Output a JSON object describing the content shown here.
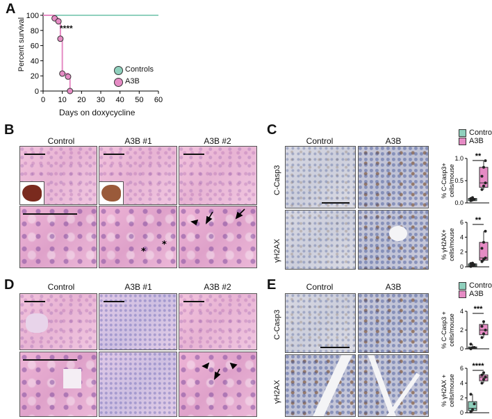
{
  "panels": {
    "A": "A",
    "B": "B",
    "C": "C",
    "D": "D",
    "E": "E"
  },
  "survival": {
    "ylabel": "Percent survival",
    "xlabel": "Days on doxycycline",
    "significance": "****",
    "legend": [
      {
        "name": "Controls",
        "color": "#8fd0bd"
      },
      {
        "name": "A3B",
        "color": "#e58bc4"
      }
    ]
  },
  "chart_data": [
    {
      "type": "line",
      "title": "",
      "xlabel": "Days on doxycycline",
      "ylabel": "Percent survival",
      "xlim": [
        0,
        60
      ],
      "ylim": [
        0,
        100
      ],
      "xticks": [
        "0",
        "10",
        "20",
        "30",
        "40",
        "50",
        "60"
      ],
      "yticks": [
        "0",
        "20",
        "40",
        "60",
        "80",
        "100"
      ],
      "series": [
        {
          "name": "Controls",
          "color": "#8fd0bd",
          "x": [
            0,
            60
          ],
          "y": [
            100,
            100
          ]
        },
        {
          "name": "A3B",
          "color": "#e58bc4",
          "x": [
            0,
            6,
            8,
            9,
            10,
            13,
            14,
            14
          ],
          "y": [
            100,
            96,
            92,
            69,
            23,
            19,
            0,
            0
          ],
          "points": [
            [
              6,
              96
            ],
            [
              8,
              92
            ],
            [
              9,
              69
            ],
            [
              10,
              23
            ],
            [
              13,
              19
            ],
            [
              14,
              0
            ]
          ]
        }
      ]
    },
    {
      "type": "box",
      "panel": "C",
      "ylabel": "% C-Casp3+ cells/mouse",
      "ylim": [
        0,
        1.0
      ],
      "yticks": [
        "0.0",
        "0.5",
        "1.0"
      ],
      "significance": "**",
      "groups": [
        {
          "name": "Control",
          "color": "#8fd0bd",
          "q1": 0.05,
          "median": 0.08,
          "q3": 0.1,
          "min": 0.03,
          "max": 0.12,
          "points": [
            0.05,
            0.07,
            0.08,
            0.1,
            0.12
          ]
        },
        {
          "name": "A3B",
          "color": "#e58bc4",
          "q1": 0.35,
          "median": 0.45,
          "q3": 0.8,
          "min": 0.3,
          "max": 0.95,
          "points": [
            0.3,
            0.38,
            0.45,
            0.6,
            0.8,
            0.95
          ]
        }
      ]
    },
    {
      "type": "box",
      "panel": "C",
      "ylabel": "% γH2AX+ cells/mouse",
      "ylim": [
        0,
        6
      ],
      "yticks": [
        "0",
        "2",
        "4",
        "6"
      ],
      "significance": "**",
      "groups": [
        {
          "name": "Control",
          "color": "#8fd0bd",
          "q1": 0.1,
          "median": 0.25,
          "q3": 0.4,
          "min": 0.05,
          "max": 0.5,
          "points": [
            0.05,
            0.2,
            0.3,
            0.45,
            0.5
          ]
        },
        {
          "name": "A3B",
          "color": "#e58bc4",
          "q1": 0.9,
          "median": 1.2,
          "q3": 3.3,
          "min": 0.7,
          "max": 4.8,
          "points": [
            0.7,
            1.0,
            1.2,
            2.5,
            3.3,
            4.8
          ]
        }
      ]
    },
    {
      "type": "box",
      "panel": "E",
      "ylabel": "% C-Casp3 + cells/mouse",
      "ylim": [
        0,
        4
      ],
      "yticks": [
        "0",
        "2",
        "4"
      ],
      "significance": "***",
      "groups": [
        {
          "name": "Control",
          "color": "#8fd0bd",
          "q1": 0.05,
          "median": 0.1,
          "q3": 0.2,
          "min": 0.0,
          "max": 0.5,
          "points": [
            0.0,
            0.1,
            0.15,
            0.5
          ]
        },
        {
          "name": "A3B",
          "color": "#e58bc4",
          "q1": 1.5,
          "median": 2.0,
          "q3": 2.6,
          "min": 1.2,
          "max": 2.9,
          "points": [
            1.2,
            1.6,
            2.0,
            2.4,
            2.9
          ]
        }
      ]
    },
    {
      "type": "box",
      "panel": "E",
      "ylabel": "% γH2AX + cells/mouse",
      "ylim": [
        0,
        6
      ],
      "yticks": [
        "0",
        "2",
        "4",
        "6"
      ],
      "significance": "****",
      "groups": [
        {
          "name": "Control",
          "color": "#8fd0bd",
          "q1": 0.3,
          "median": 0.6,
          "q3": 1.5,
          "min": 0.1,
          "max": 2.5,
          "points": [
            0.1,
            0.4,
            1.2,
            2.5
          ]
        },
        {
          "name": "A3B",
          "color": "#e58bc4",
          "q1": 4.3,
          "median": 4.8,
          "q3": 5.1,
          "min": 4.0,
          "max": 5.4,
          "points": [
            4.0,
            4.5,
            4.8,
            5.1,
            5.4
          ]
        }
      ]
    }
  ],
  "panelB": {
    "cols": [
      "Control",
      "A3B #1",
      "A3B #2"
    ]
  },
  "panelC": {
    "cols": [
      "Control",
      "A3B"
    ],
    "rows": [
      "C-Casp3",
      "γH2AX"
    ],
    "legend": [
      "Control",
      "A3B"
    ]
  },
  "panelD": {
    "cols": [
      "Control",
      "A3B #1",
      "A3B #2"
    ]
  },
  "panelE": {
    "cols": [
      "Control",
      "A3B"
    ],
    "rows": [
      "C-Casp3",
      "γH2AX"
    ],
    "legend": [
      "Control",
      "A3B"
    ]
  },
  "markers": {
    "asterisk": "*"
  },
  "colors": {
    "control": "#8fd0bd",
    "a3b": "#e58bc4"
  }
}
